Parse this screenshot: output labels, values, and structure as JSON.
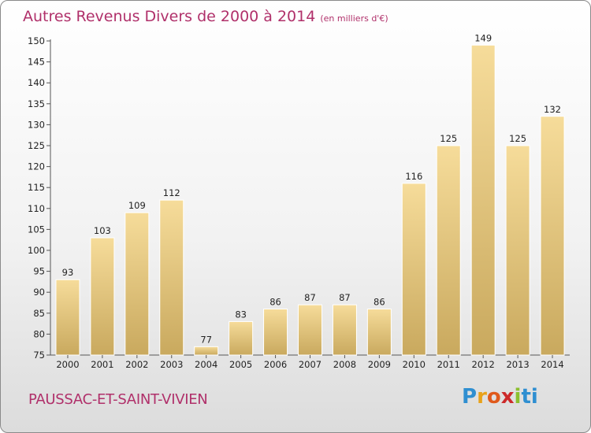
{
  "header": {
    "title": "Autres Revenus Divers de 2000 à 2014",
    "unit": "(en milliers d'€)"
  },
  "footer": {
    "place": "PAUSSAC-ET-SAINT-VIVIEN",
    "logo": [
      "P",
      "r",
      "o",
      "x",
      "i",
      "ti"
    ]
  },
  "colors": {
    "accent": "#b0306a",
    "bar_light": "#f6dc9a",
    "bar_dark": "#c9a95e"
  },
  "chart_data": {
    "type": "bar",
    "title": "Autres Revenus Divers de 2000 à 2014",
    "subtitle": "(en milliers d'€)",
    "categories": [
      "2000",
      "2001",
      "2002",
      "2003",
      "2004",
      "2005",
      "2006",
      "2007",
      "2008",
      "2009",
      "2010",
      "2011",
      "2012",
      "2013",
      "2014"
    ],
    "values": [
      93,
      103,
      109,
      112,
      77,
      83,
      86,
      87,
      87,
      86,
      116,
      125,
      149,
      125,
      132
    ],
    "ylim": [
      75,
      150
    ],
    "yticks": [
      75,
      80,
      85,
      90,
      95,
      100,
      105,
      110,
      115,
      120,
      125,
      130,
      135,
      140,
      145,
      150
    ],
    "grid": false,
    "legend": "none"
  }
}
